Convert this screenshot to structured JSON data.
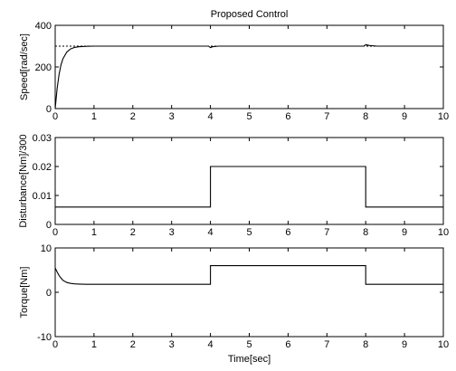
{
  "chart_data": [
    {
      "type": "line",
      "title": "Proposed Control",
      "xlabel": "",
      "ylabel": "Speed[rad/sec]",
      "xlim": [
        0,
        10
      ],
      "ylim": [
        0,
        400
      ],
      "xticks": [
        0,
        1,
        2,
        3,
        4,
        5,
        6,
        7,
        8,
        9,
        10
      ],
      "yticks": [
        0,
        200,
        400
      ],
      "grid": false,
      "series": [
        {
          "reference_y": 300,
          "style": "dashed"
        },
        {
          "x": [
            0,
            0.05,
            0.1,
            0.15,
            0.2,
            0.3,
            0.4,
            0.5,
            0.6,
            0.8,
            1.0,
            2.0,
            3.0,
            3.95,
            4.0,
            4.05,
            4.2,
            5.0,
            6.0,
            7.0,
            7.95,
            8.0,
            8.1,
            8.3,
            9.0,
            10.0
          ],
          "y": [
            0,
            95,
            165,
            210,
            240,
            272,
            287,
            294,
            297,
            299,
            300,
            300,
            300,
            300,
            293,
            297,
            300,
            300,
            300,
            300,
            300,
            307,
            303,
            300,
            300,
            300
          ]
        }
      ]
    },
    {
      "type": "line",
      "title": "",
      "xlabel": "",
      "ylabel": "Disturbance[Nm]/300",
      "xlim": [
        0,
        10
      ],
      "ylim": [
        0,
        0.03
      ],
      "xticks": [
        0,
        1,
        2,
        3,
        4,
        5,
        6,
        7,
        8,
        9,
        10
      ],
      "yticks": [
        0,
        0.01,
        0.02,
        0.03
      ],
      "grid": false,
      "series": [
        {
          "x": [
            0,
            4,
            4,
            8,
            8,
            10
          ],
          "y": [
            0.006,
            0.006,
            0.02,
            0.02,
            0.006,
            0.006
          ]
        }
      ]
    },
    {
      "type": "line",
      "title": "",
      "xlabel": "Time[sec]",
      "ylabel": "Torque[Nm]",
      "xlim": [
        0,
        10
      ],
      "ylim": [
        -10,
        10
      ],
      "xticks": [
        0,
        1,
        2,
        3,
        4,
        5,
        6,
        7,
        8,
        9,
        10
      ],
      "yticks": [
        -10,
        0,
        10
      ],
      "grid": false,
      "series": [
        {
          "x": [
            0,
            0.05,
            0.1,
            0.15,
            0.2,
            0.3,
            0.4,
            0.5,
            0.6,
            0.8,
            1.0,
            4.0,
            4.0,
            8.0,
            8.0,
            10.0
          ],
          "y": [
            5.5,
            4.6,
            3.8,
            3.2,
            2.7,
            2.2,
            2.0,
            1.9,
            1.85,
            1.8,
            1.8,
            1.8,
            6.0,
            6.0,
            1.8,
            1.8
          ]
        }
      ]
    }
  ]
}
